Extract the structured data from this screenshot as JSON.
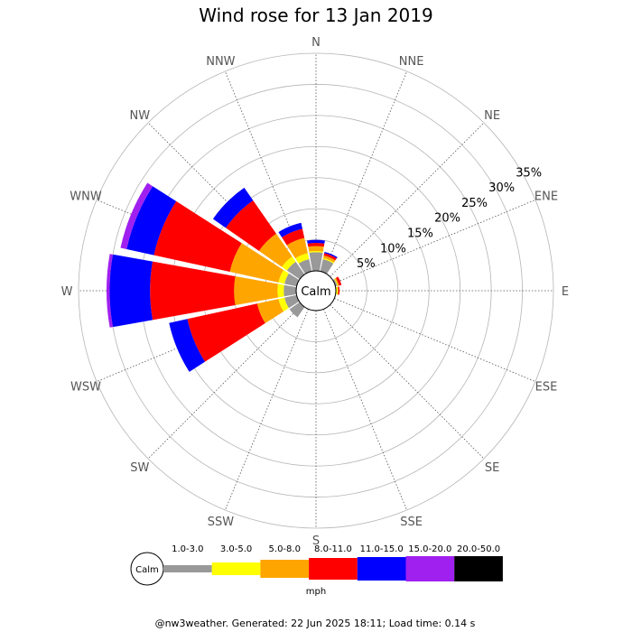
{
  "chart_data": {
    "type": "windrose",
    "title": "Wind rose for 13 Jan 2019",
    "directions": [
      "N",
      "NNE",
      "NE",
      "ENE",
      "E",
      "ESE",
      "SE",
      "SSE",
      "S",
      "SSW",
      "SW",
      "WSW",
      "W",
      "WNW",
      "NW",
      "NNW"
    ],
    "ring_labels": [
      "5%",
      "10%",
      "15%",
      "20%",
      "25%",
      "30%",
      "35%"
    ],
    "ring_values": [
      5,
      10,
      15,
      20,
      25,
      30,
      35
    ],
    "rmax": 35,
    "calm_label": "Calm",
    "speed_bins": [
      {
        "label": "1.0-3.0",
        "color": "#999999"
      },
      {
        "label": "3.0-5.0",
        "color": "#ffff00"
      },
      {
        "label": "5.0-8.0",
        "color": "#ffa500"
      },
      {
        "label": "8.0-11.0",
        "color": "#ff0000"
      },
      {
        "label": "11.0-15.0",
        "color": "#0000ff"
      },
      {
        "label": "15.0-20.0",
        "color": "#a020f0"
      },
      {
        "label": "20.0-50.0",
        "color": "#000000"
      }
    ],
    "units": "mph",
    "cumulative_percent_by_direction": {
      "N": [
        3.0,
        3.2,
        4.0,
        4.5,
        5.0,
        5.0,
        5.0
      ],
      "NNE": [
        2.0,
        2.2,
        2.6,
        3.0,
        3.2,
        3.2,
        3.2
      ],
      "NE": [
        0,
        0,
        0,
        0,
        0,
        0,
        0
      ],
      "ENE": [
        0.3,
        0.4,
        0.6,
        1.0,
        1.0,
        1.0,
        1.0
      ],
      "E": [
        0,
        0.3,
        0.4,
        0.6,
        0.6,
        0.6,
        0.6
      ],
      "ESE": [
        0,
        0,
        0,
        0,
        0,
        0,
        0
      ],
      "SE": [
        0,
        0,
        0,
        0,
        0,
        0,
        0
      ],
      "SSE": [
        0,
        0,
        0,
        0,
        0,
        0,
        0
      ],
      "S": [
        0,
        0,
        0,
        0,
        0,
        0,
        0
      ],
      "SSW": [
        0,
        0,
        0,
        0,
        0,
        0,
        0
      ],
      "SW": [
        2.0,
        2.0,
        2.0,
        2.0,
        2.0,
        2.0,
        2.0
      ],
      "WSW": [
        2.0,
        3.0,
        6.5,
        18.0,
        21.0,
        21.0,
        21.0
      ],
      "W": [
        2.0,
        3.0,
        10.0,
        23.5,
        30.0,
        30.5,
        30.5
      ],
      "WNW": [
        2.0,
        3.0,
        11.0,
        23.5,
        28.0,
        29.0,
        29.0
      ],
      "NW": [
        2.5,
        3.5,
        8.0,
        14.5,
        17.0,
        17.0,
        17.0
      ],
      "NNW": [
        2.0,
        3.0,
        5.5,
        7.0,
        8.0,
        8.0,
        8.0
      ]
    }
  },
  "footer": "@nw3weather. Generated: 22 Jun 2025 18:11; Load time: 0.14 s"
}
